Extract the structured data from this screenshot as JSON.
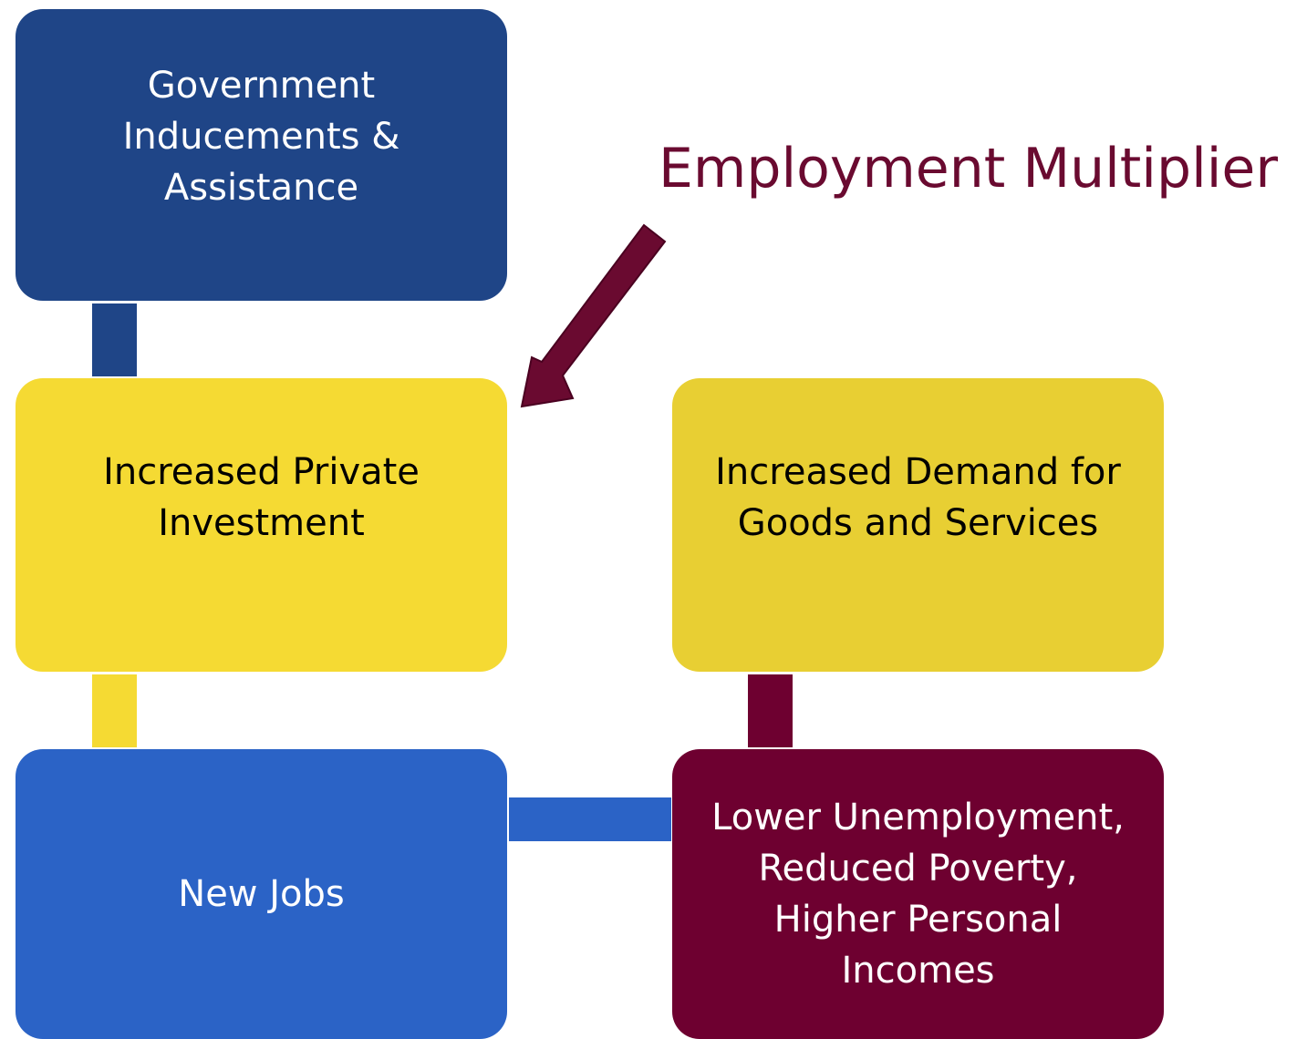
{
  "title": "Employment Multiplier",
  "nodes": [
    {
      "label": "Government\nInducements &\nAssistance"
    },
    {
      "label": "Increased Private\nInvestment"
    },
    {
      "label": "New Jobs"
    },
    {
      "label": "Lower Unemployment,\nReduced Poverty,\nHigher Personal\nIncomes"
    },
    {
      "label": "Increased Demand for\nGoods and Services"
    }
  ]
}
